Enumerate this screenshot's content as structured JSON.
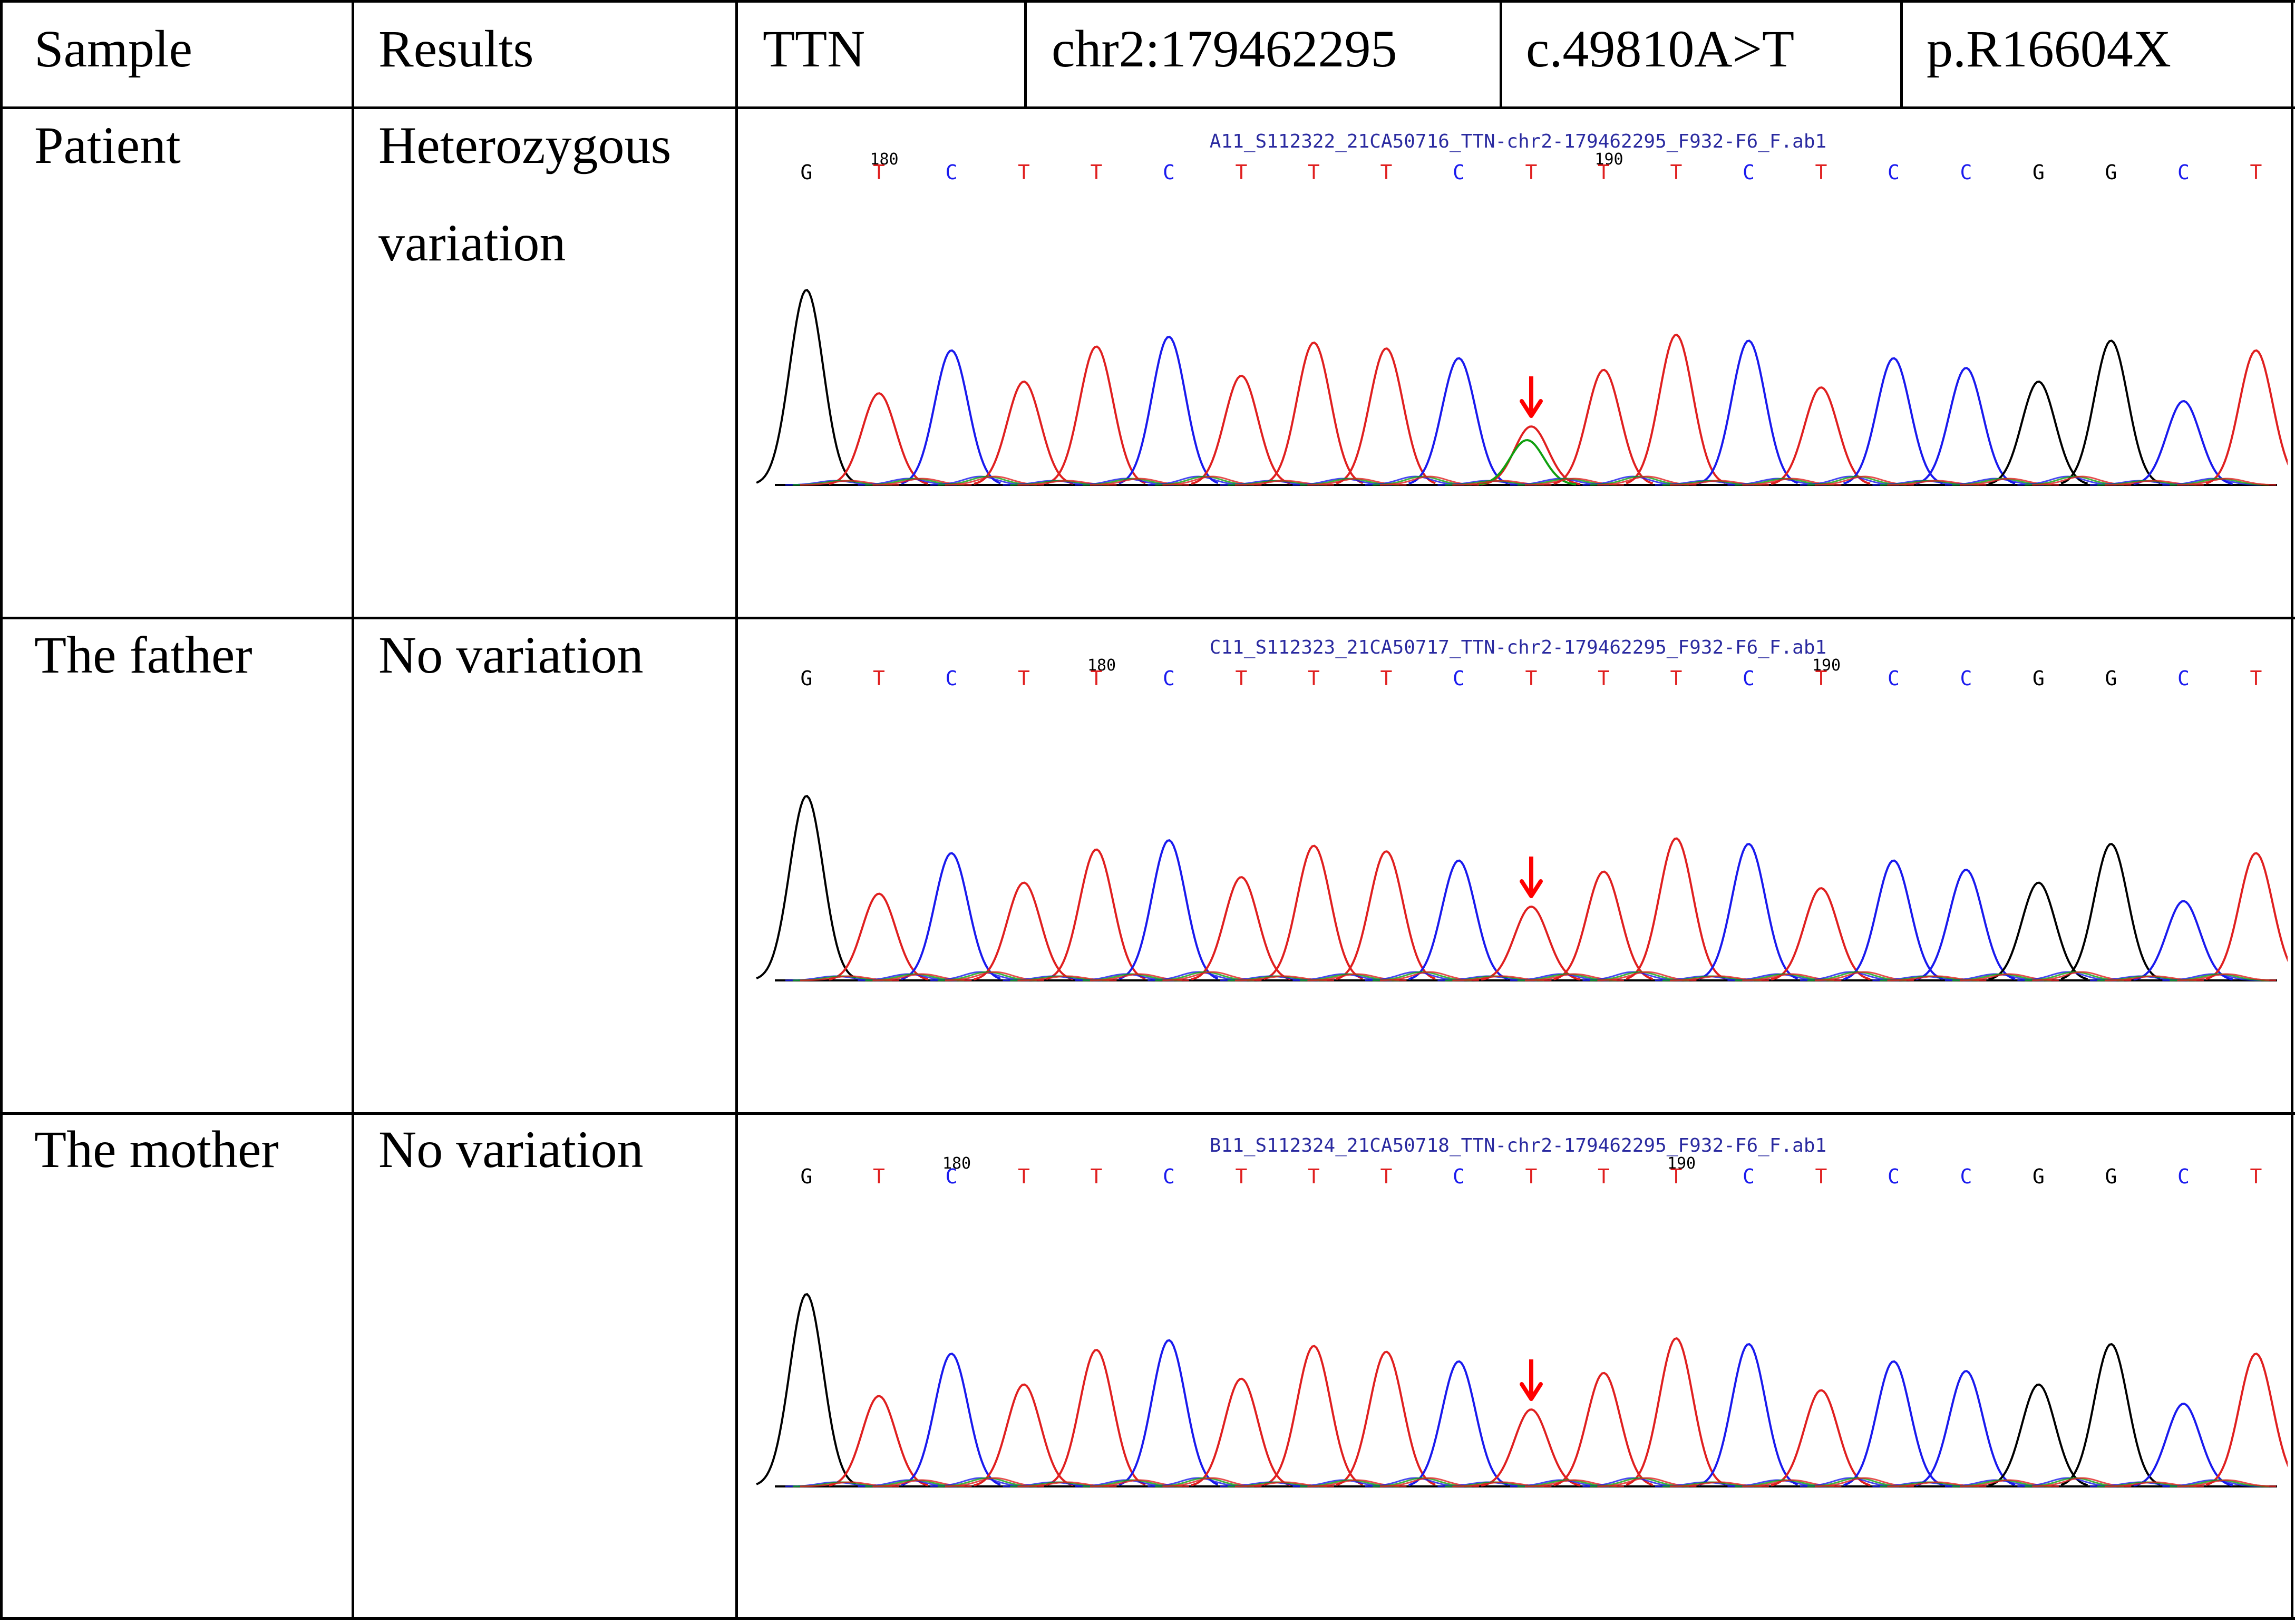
{
  "header": {
    "sample": "Sample",
    "results": "Results",
    "gene": "TTN",
    "position": "chr2:179462295",
    "cdna": "c.49810A>T",
    "protein": "p.R16604X"
  },
  "rows": [
    {
      "sample": "Patient",
      "result_lines": [
        "Heterozygous",
        "variation"
      ],
      "file": "A11_S112322_21CA50716_TTN-chr2-179462295_F932-F6_F.ab1",
      "bases": [
        "G",
        "T",
        "C",
        "T",
        "T",
        "C",
        "T",
        "T",
        "T",
        "C",
        "T",
        "T",
        "T",
        "C",
        "T",
        "C",
        "C",
        "G",
        "G",
        "C",
        "T"
      ],
      "tick_labels": [
        {
          "text": "180",
          "at": 1
        },
        {
          "text": "190",
          "at": 11
        }
      ],
      "variant_index": 10,
      "heterozygous": true
    },
    {
      "sample": "The father",
      "result_lines": [
        "No variation"
      ],
      "file": "C11_S112323_21CA50717_TTN-chr2-179462295_F932-F6_F.ab1",
      "bases": [
        "G",
        "T",
        "C",
        "T",
        "T",
        "C",
        "T",
        "T",
        "T",
        "C",
        "T",
        "T",
        "T",
        "C",
        "T",
        "C",
        "C",
        "G",
        "G",
        "C",
        "T"
      ],
      "tick_labels": [
        {
          "text": "180",
          "at": 4
        },
        {
          "text": "190",
          "at": 14
        }
      ],
      "variant_index": 10,
      "heterozygous": false
    },
    {
      "sample": "The mother",
      "result_lines": [
        "No variation"
      ],
      "file": "B11_S112324_21CA50718_TTN-chr2-179462295_F932-F6_F.ab1",
      "bases": [
        "G",
        "T",
        "C",
        "T",
        "T",
        "C",
        "T",
        "T",
        "T",
        "C",
        "T",
        "T",
        "T",
        "C",
        "T",
        "C",
        "C",
        "G",
        "G",
        "C",
        "T"
      ],
      "tick_labels": [
        {
          "text": "180",
          "at": 2
        },
        {
          "text": "190",
          "at": 12
        }
      ],
      "variant_index": 10,
      "heterozygous": false
    }
  ],
  "colors": {
    "G": "#000000",
    "T": "#e02020",
    "C": "#1a1aee",
    "A": "#10a010",
    "arrow": "#ff0000",
    "title": "#2a2aa0"
  }
}
